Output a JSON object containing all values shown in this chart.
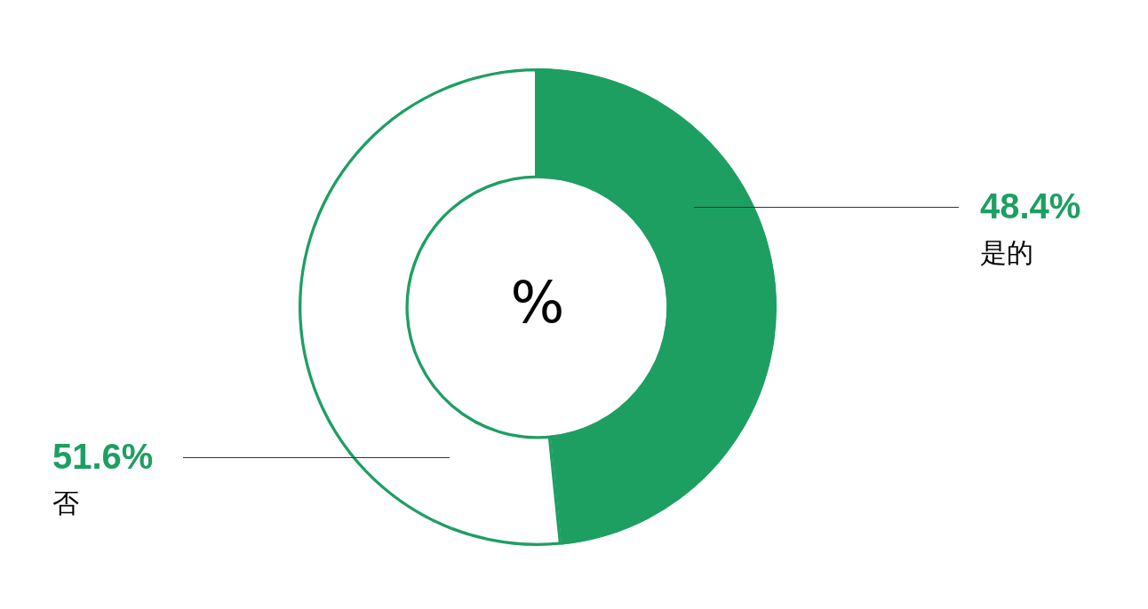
{
  "chart_data": {
    "type": "donut",
    "categories": [
      "是的",
      "否"
    ],
    "values": [
      48.4,
      51.6
    ],
    "colors": [
      "#1e9f62",
      "#ffffff"
    ],
    "value_labels": [
      "48.4%",
      "51.6%"
    ],
    "annotations": [
      "%"
    ],
    "legend": false
  }
}
